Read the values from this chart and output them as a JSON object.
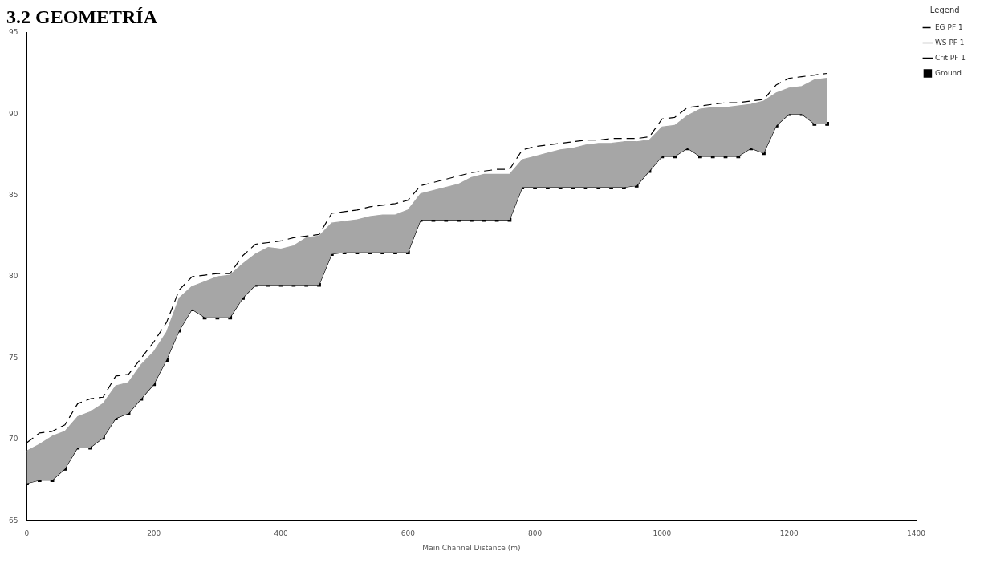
{
  "chart_data": {
    "type": "line",
    "title": "3.2 GEOMETRÍA",
    "xlabel": "Main Channel Distance (m)",
    "legend_title": "Legend",
    "x": [
      0,
      20,
      40,
      60,
      80,
      100,
      120,
      140,
      160,
      180,
      200,
      220,
      240,
      260,
      280,
      300,
      320,
      340,
      360,
      380,
      400,
      420,
      440,
      460,
      480,
      500,
      520,
      540,
      560,
      580,
      600,
      620,
      640,
      660,
      680,
      700,
      720,
      740,
      760,
      780,
      800,
      820,
      840,
      860,
      880,
      900,
      920,
      940,
      960,
      980,
      1000,
      1020,
      1040,
      1060,
      1080,
      1100,
      1120,
      1140,
      1160,
      1180,
      1200,
      1220,
      1240,
      1260
    ],
    "series": [
      {
        "name": "EG PF 1",
        "type": "line",
        "line_style": "dashed",
        "marker": "none",
        "color": "#000000",
        "values": [
          69.8,
          70.4,
          70.5,
          70.9,
          72.2,
          72.5,
          72.6,
          73.9,
          74.0,
          75.0,
          76.0,
          77.2,
          79.2,
          80.0,
          80.1,
          80.2,
          80.2,
          81.3,
          82.0,
          82.1,
          82.2,
          82.4,
          82.5,
          82.6,
          83.9,
          84.0,
          84.1,
          84.3,
          84.4,
          84.5,
          84.7,
          85.6,
          85.8,
          86.0,
          86.2,
          86.4,
          86.5,
          86.6,
          86.6,
          87.8,
          88.0,
          88.1,
          88.2,
          88.3,
          88.4,
          88.4,
          88.5,
          88.5,
          88.5,
          88.6,
          89.7,
          89.8,
          90.4,
          90.5,
          90.6,
          90.7,
          90.7,
          90.8,
          90.9,
          91.8,
          92.2,
          92.3,
          92.4,
          92.5
        ]
      },
      {
        "name": "WS PF 1",
        "type": "area",
        "line_style": "solid",
        "marker": "none",
        "color": "#a6a6a6",
        "values": [
          69.3,
          69.7,
          70.2,
          70.5,
          71.4,
          71.7,
          72.2,
          73.3,
          73.5,
          74.6,
          75.4,
          76.6,
          78.7,
          79.4,
          79.7,
          80.0,
          80.1,
          80.8,
          81.4,
          81.8,
          81.7,
          81.9,
          82.4,
          82.5,
          83.3,
          83.4,
          83.5,
          83.7,
          83.8,
          83.8,
          84.1,
          85.1,
          85.3,
          85.5,
          85.7,
          86.1,
          86.3,
          86.3,
          86.3,
          87.2,
          87.4,
          87.6,
          87.8,
          87.9,
          88.1,
          88.2,
          88.2,
          88.3,
          88.3,
          88.4,
          89.2,
          89.3,
          89.9,
          90.3,
          90.4,
          90.4,
          90.5,
          90.6,
          90.8,
          91.3,
          91.6,
          91.7,
          92.1,
          92.2
        ]
      },
      {
        "name": "Crit PF 1",
        "type": "line",
        "line_style": "solid",
        "marker": "none",
        "color": "#000000",
        "values": [
          null,
          null,
          null,
          null,
          null,
          null,
          null,
          null,
          null,
          null,
          null,
          null,
          null,
          null,
          null,
          null,
          null,
          null,
          null,
          null,
          null,
          null,
          null,
          null,
          null,
          null,
          null,
          null,
          null,
          null,
          null,
          null,
          null,
          null,
          null,
          null,
          null,
          null,
          null,
          null,
          null,
          null,
          null,
          null,
          null,
          null,
          null,
          null,
          null,
          null,
          null,
          null,
          null,
          null,
          null,
          null,
          null,
          null,
          null,
          null,
          null,
          null,
          null,
          null
        ]
      },
      {
        "name": "Ground",
        "type": "line",
        "line_style": "solid",
        "marker": "square",
        "color": "#000000",
        "values": [
          67.3,
          67.5,
          67.5,
          68.2,
          69.5,
          69.5,
          70.1,
          71.3,
          71.6,
          72.5,
          73.4,
          74.9,
          76.7,
          78.0,
          77.5,
          77.5,
          77.5,
          78.7,
          79.5,
          79.5,
          79.5,
          79.5,
          79.5,
          79.5,
          81.4,
          81.5,
          81.5,
          81.5,
          81.5,
          81.5,
          81.5,
          83.5,
          83.5,
          83.5,
          83.5,
          83.5,
          83.5,
          83.5,
          83.5,
          85.5,
          85.5,
          85.5,
          85.5,
          85.5,
          85.5,
          85.5,
          85.5,
          85.5,
          85.6,
          86.5,
          87.4,
          87.4,
          87.9,
          87.4,
          87.4,
          87.4,
          87.4,
          87.9,
          87.6,
          89.3,
          90.0,
          90.0,
          89.4,
          89.4
        ]
      }
    ],
    "xlim": [
      0,
      1400
    ],
    "xticks": [
      0,
      200,
      400,
      600,
      800,
      1000,
      1200,
      1400
    ],
    "ylim": [
      65,
      95
    ],
    "yticks": [
      65,
      70,
      75,
      80,
      85,
      90,
      95
    ],
    "grid": false,
    "legend": "top right"
  }
}
